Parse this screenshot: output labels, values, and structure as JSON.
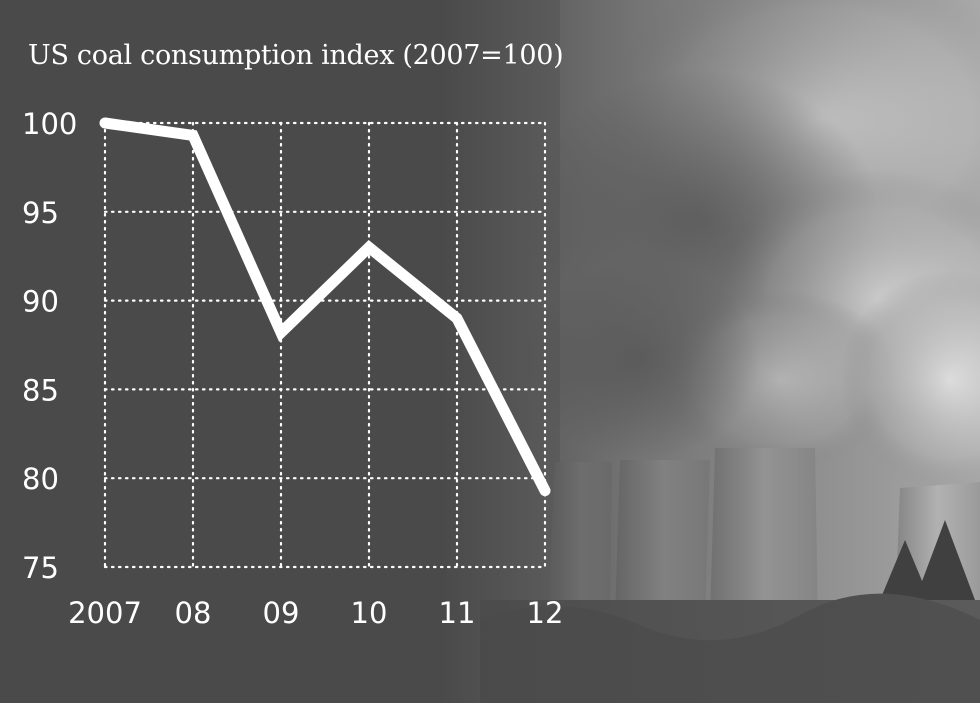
{
  "chart_data": {
    "type": "line",
    "title": "US coal consumption index (2007=100)",
    "categories": [
      "2007",
      "08",
      "09",
      "10",
      "11",
      "12"
    ],
    "series": [
      {
        "values": [
          100,
          99.3,
          88.2,
          93.0,
          89.0,
          79.3
        ]
      }
    ],
    "ylim": [
      75,
      100
    ],
    "yticks": [
      100,
      95,
      90,
      85,
      80,
      75
    ],
    "grid": true,
    "grid_style": "dotted",
    "line_color": "#ffffff",
    "background": "#4a4a4a",
    "background_image": "power-plant-cooling-towers-smoke-photo"
  }
}
